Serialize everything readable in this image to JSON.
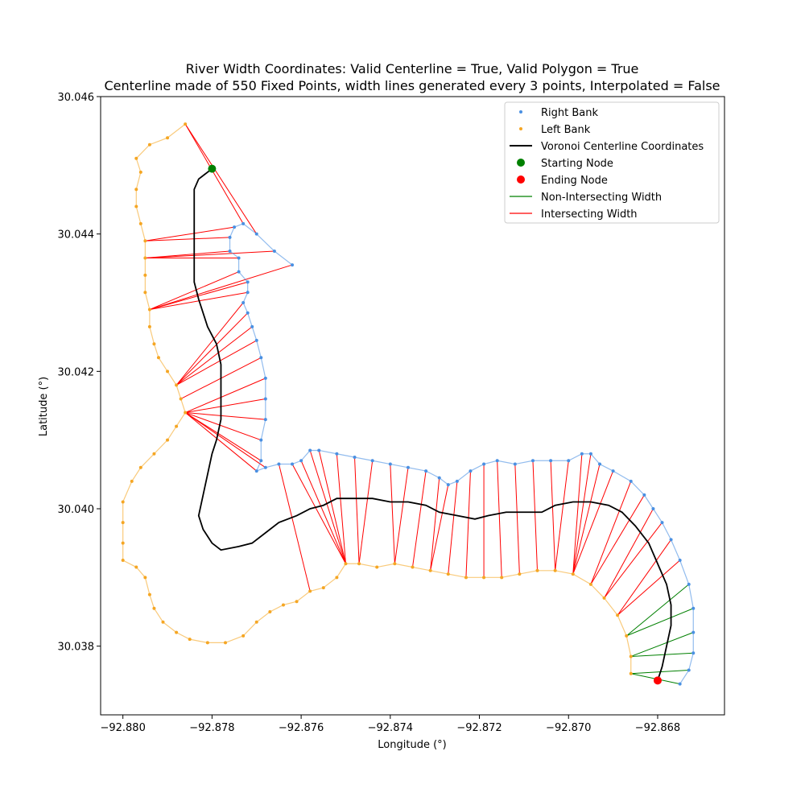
{
  "chart_data": {
    "type": "line",
    "title_line1": "River Width Coordinates: Valid Centerline = True, Valid Polygon = True",
    "title_line2": "Centerline made of 550 Fixed Points, width lines generated every 3 points, Interpolated = False",
    "xlabel": "Longitude (°)",
    "ylabel": "Latitude (°)",
    "xlim": [
      -92.8805,
      -92.8665
    ],
    "ylim": [
      30.037,
      30.046
    ],
    "x_ticks": [
      -92.88,
      -92.878,
      -92.876,
      -92.874,
      -92.872,
      -92.87,
      -92.868
    ],
    "x_tick_labels": [
      "−92.880",
      "−92.878",
      "−92.876",
      "−92.874",
      "−92.872",
      "−92.870",
      "−92.868"
    ],
    "y_ticks": [
      30.038,
      30.04,
      30.042,
      30.044,
      30.046
    ],
    "y_tick_labels": [
      "30.038",
      "30.040",
      "30.042",
      "30.044",
      "30.046"
    ],
    "legend": [
      {
        "label": "Right Bank",
        "kind": "dot",
        "color": "#4a90e2"
      },
      {
        "label": "Left Bank",
        "kind": "dot",
        "color": "#f5a623"
      },
      {
        "label": "Voronoi Centerline Coordinates",
        "kind": "line",
        "color": "#000000"
      },
      {
        "label": "Starting Node",
        "kind": "big-dot",
        "color": "#008000"
      },
      {
        "label": "Ending Node",
        "kind": "big-dot",
        "color": "#ff0000"
      },
      {
        "label": "Non-Intersecting Width",
        "kind": "line",
        "color": "#008000"
      },
      {
        "label": "Intersecting Width",
        "kind": "line",
        "color": "#ff0000"
      }
    ],
    "legend_location": "top-right",
    "series": [
      {
        "name": "Right Bank",
        "color": "#4a90e2",
        "points": [
          [
            -92.8762,
            30.04355
          ],
          [
            -92.8766,
            30.04375
          ],
          [
            -92.877,
            30.044
          ],
          [
            -92.8773,
            30.04415
          ],
          [
            -92.8775,
            30.0441
          ],
          [
            -92.8776,
            30.04395
          ],
          [
            -92.8776,
            30.04375
          ],
          [
            -92.8774,
            30.04365
          ],
          [
            -92.8774,
            30.04345
          ],
          [
            -92.8772,
            30.0433
          ],
          [
            -92.8772,
            30.04315
          ],
          [
            -92.8773,
            30.043
          ],
          [
            -92.8772,
            30.04285
          ],
          [
            -92.8771,
            30.04265
          ],
          [
            -92.877,
            30.04245
          ],
          [
            -92.8769,
            30.0422
          ],
          [
            -92.8768,
            30.0419
          ],
          [
            -92.8768,
            30.0416
          ],
          [
            -92.8768,
            30.0413
          ],
          [
            -92.8769,
            30.041
          ],
          [
            -92.8769,
            30.0407
          ],
          [
            -92.877,
            30.04055
          ],
          [
            -92.8768,
            30.0406
          ],
          [
            -92.8765,
            30.04065
          ],
          [
            -92.8762,
            30.04065
          ],
          [
            -92.876,
            30.0407
          ],
          [
            -92.8758,
            30.04085
          ],
          [
            -92.8756,
            30.04085
          ],
          [
            -92.8752,
            30.0408
          ],
          [
            -92.8748,
            30.04075
          ],
          [
            -92.8744,
            30.0407
          ],
          [
            -92.874,
            30.04065
          ],
          [
            -92.8736,
            30.0406
          ],
          [
            -92.8732,
            30.04055
          ],
          [
            -92.8729,
            30.04045
          ],
          [
            -92.8727,
            30.04035
          ],
          [
            -92.8725,
            30.0404
          ],
          [
            -92.8722,
            30.04055
          ],
          [
            -92.8719,
            30.04065
          ],
          [
            -92.8716,
            30.0407
          ],
          [
            -92.8712,
            30.04065
          ],
          [
            -92.8708,
            30.0407
          ],
          [
            -92.8704,
            30.0407
          ],
          [
            -92.87,
            30.0407
          ],
          [
            -92.8697,
            30.0408
          ],
          [
            -92.8695,
            30.0408
          ],
          [
            -92.8693,
            30.04065
          ],
          [
            -92.869,
            30.04055
          ],
          [
            -92.8686,
            30.0404
          ],
          [
            -92.8683,
            30.0402
          ],
          [
            -92.8681,
            30.04
          ],
          [
            -92.8679,
            30.0398
          ],
          [
            -92.8677,
            30.03955
          ],
          [
            -92.8675,
            30.03925
          ],
          [
            -92.8673,
            30.0389
          ],
          [
            -92.8672,
            30.03855
          ],
          [
            -92.8672,
            30.0382
          ],
          [
            -92.8672,
            30.0379
          ],
          [
            -92.8673,
            30.03765
          ],
          [
            -92.8675,
            30.03745
          ]
        ]
      },
      {
        "name": "Left Bank",
        "color": "#f5a623",
        "points": [
          [
            -92.8786,
            30.0456
          ],
          [
            -92.879,
            30.0454
          ],
          [
            -92.8794,
            30.0453
          ],
          [
            -92.8797,
            30.0451
          ],
          [
            -92.8796,
            30.0449
          ],
          [
            -92.8797,
            30.04465
          ],
          [
            -92.8797,
            30.0444
          ],
          [
            -92.8796,
            30.04415
          ],
          [
            -92.8795,
            30.0439
          ],
          [
            -92.8795,
            30.04365
          ],
          [
            -92.8795,
            30.0434
          ],
          [
            -92.8795,
            30.04315
          ],
          [
            -92.8794,
            30.0429
          ],
          [
            -92.8794,
            30.04265
          ],
          [
            -92.8793,
            30.0424
          ],
          [
            -92.8792,
            30.0422
          ],
          [
            -92.879,
            30.042
          ],
          [
            -92.8788,
            30.0418
          ],
          [
            -92.8787,
            30.0416
          ],
          [
            -92.8786,
            30.0414
          ],
          [
            -92.8788,
            30.0412
          ],
          [
            -92.879,
            30.041
          ],
          [
            -92.8793,
            30.0408
          ],
          [
            -92.8796,
            30.0406
          ],
          [
            -92.8798,
            30.0404
          ],
          [
            -92.88,
            30.0401
          ],
          [
            -92.88,
            30.0398
          ],
          [
            -92.88,
            30.0395
          ],
          [
            -92.88,
            30.03925
          ],
          [
            -92.8797,
            30.03915
          ],
          [
            -92.8795,
            30.039
          ],
          [
            -92.8794,
            30.03875
          ],
          [
            -92.8793,
            30.03855
          ],
          [
            -92.8791,
            30.03835
          ],
          [
            -92.8788,
            30.0382
          ],
          [
            -92.8785,
            30.0381
          ],
          [
            -92.8781,
            30.03805
          ],
          [
            -92.8777,
            30.03805
          ],
          [
            -92.8773,
            30.03815
          ],
          [
            -92.877,
            30.03835
          ],
          [
            -92.8767,
            30.0385
          ],
          [
            -92.8764,
            30.0386
          ],
          [
            -92.8761,
            30.03865
          ],
          [
            -92.8758,
            30.0388
          ],
          [
            -92.8755,
            30.03885
          ],
          [
            -92.8752,
            30.039
          ],
          [
            -92.875,
            30.0392
          ],
          [
            -92.8747,
            30.0392
          ],
          [
            -92.8743,
            30.03915
          ],
          [
            -92.8739,
            30.0392
          ],
          [
            -92.8735,
            30.03915
          ],
          [
            -92.8731,
            30.0391
          ],
          [
            -92.8727,
            30.03905
          ],
          [
            -92.8723,
            30.039
          ],
          [
            -92.8719,
            30.039
          ],
          [
            -92.8715,
            30.039
          ],
          [
            -92.8711,
            30.03905
          ],
          [
            -92.8707,
            30.0391
          ],
          [
            -92.8703,
            30.0391
          ],
          [
            -92.8699,
            30.03905
          ],
          [
            -92.8695,
            30.0389
          ],
          [
            -92.8692,
            30.0387
          ],
          [
            -92.8689,
            30.03845
          ],
          [
            -92.8687,
            30.03815
          ],
          [
            -92.8686,
            30.03785
          ],
          [
            -92.8686,
            30.0376
          ]
        ]
      },
      {
        "name": "Voronoi Centerline Coordinates",
        "color": "#000000",
        "points": [
          [
            -92.878,
            30.04495
          ],
          [
            -92.8783,
            30.0448
          ],
          [
            -92.8784,
            30.04465
          ],
          [
            -92.8784,
            30.0442
          ],
          [
            -92.8784,
            30.0437
          ],
          [
            -92.8784,
            30.0433
          ],
          [
            -92.8783,
            30.04305
          ],
          [
            -92.8782,
            30.04285
          ],
          [
            -92.8781,
            30.04265
          ],
          [
            -92.8779,
            30.0424
          ],
          [
            -92.8778,
            30.0421
          ],
          [
            -92.8778,
            30.0417
          ],
          [
            -92.8778,
            30.0413
          ],
          [
            -92.8779,
            30.041
          ],
          [
            -92.878,
            30.0408
          ],
          [
            -92.8781,
            30.0405
          ],
          [
            -92.8782,
            30.0402
          ],
          [
            -92.8783,
            30.0399
          ],
          [
            -92.8782,
            30.0397
          ],
          [
            -92.878,
            30.0395
          ],
          [
            -92.8778,
            30.0394
          ],
          [
            -92.8774,
            30.03945
          ],
          [
            -92.8771,
            30.0395
          ],
          [
            -92.8768,
            30.03965
          ],
          [
            -92.8765,
            30.0398
          ],
          [
            -92.8761,
            30.0399
          ],
          [
            -92.8758,
            30.04
          ],
          [
            -92.8755,
            30.04005
          ],
          [
            -92.8752,
            30.04015
          ],
          [
            -92.8748,
            30.04015
          ],
          [
            -92.8744,
            30.04015
          ],
          [
            -92.874,
            30.0401
          ],
          [
            -92.8736,
            30.0401
          ],
          [
            -92.8732,
            30.04005
          ],
          [
            -92.8729,
            30.03995
          ],
          [
            -92.8725,
            30.0399
          ],
          [
            -92.8721,
            30.03985
          ],
          [
            -92.8718,
            30.0399
          ],
          [
            -92.8714,
            30.03995
          ],
          [
            -92.871,
            30.03995
          ],
          [
            -92.8706,
            30.03995
          ],
          [
            -92.8703,
            30.04005
          ],
          [
            -92.8699,
            30.0401
          ],
          [
            -92.8695,
            30.0401
          ],
          [
            -92.8691,
            30.04005
          ],
          [
            -92.8688,
            30.03995
          ],
          [
            -92.8685,
            30.03975
          ],
          [
            -92.8682,
            30.0395
          ],
          [
            -92.868,
            30.0392
          ],
          [
            -92.8678,
            30.0389
          ],
          [
            -92.8677,
            30.0386
          ],
          [
            -92.8677,
            30.0383
          ],
          [
            -92.8678,
            30.038
          ],
          [
            -92.8679,
            30.0377
          ],
          [
            -92.868,
            30.0375
          ]
        ]
      }
    ],
    "starting_node": [
      -92.878,
      30.04495
    ],
    "ending_node": [
      -92.868,
      30.0375
    ]
  }
}
